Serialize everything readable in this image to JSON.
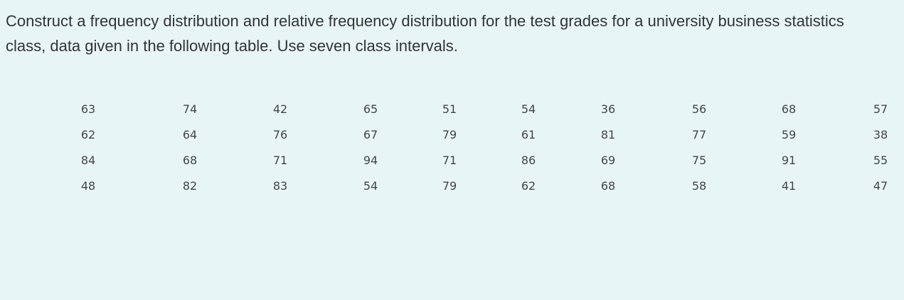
{
  "question": {
    "text": "Construct a frequency distribution and relative frequency distribution for the test grades for a university business statistics class, data given in the following table.  Use seven class intervals."
  },
  "table": {
    "rows": [
      [
        "63",
        "74",
        "42",
        "65",
        "51",
        "54",
        "36",
        "56",
        "68",
        "57"
      ],
      [
        "62",
        "64",
        "76",
        "67",
        "79",
        "61",
        "81",
        "77",
        "59",
        "38"
      ],
      [
        "84",
        "68",
        "71",
        "94",
        "71",
        "86",
        "69",
        "75",
        "91",
        "55"
      ],
      [
        "48",
        "82",
        "83",
        "54",
        "79",
        "62",
        "68",
        "58",
        "41",
        "47"
      ]
    ]
  }
}
